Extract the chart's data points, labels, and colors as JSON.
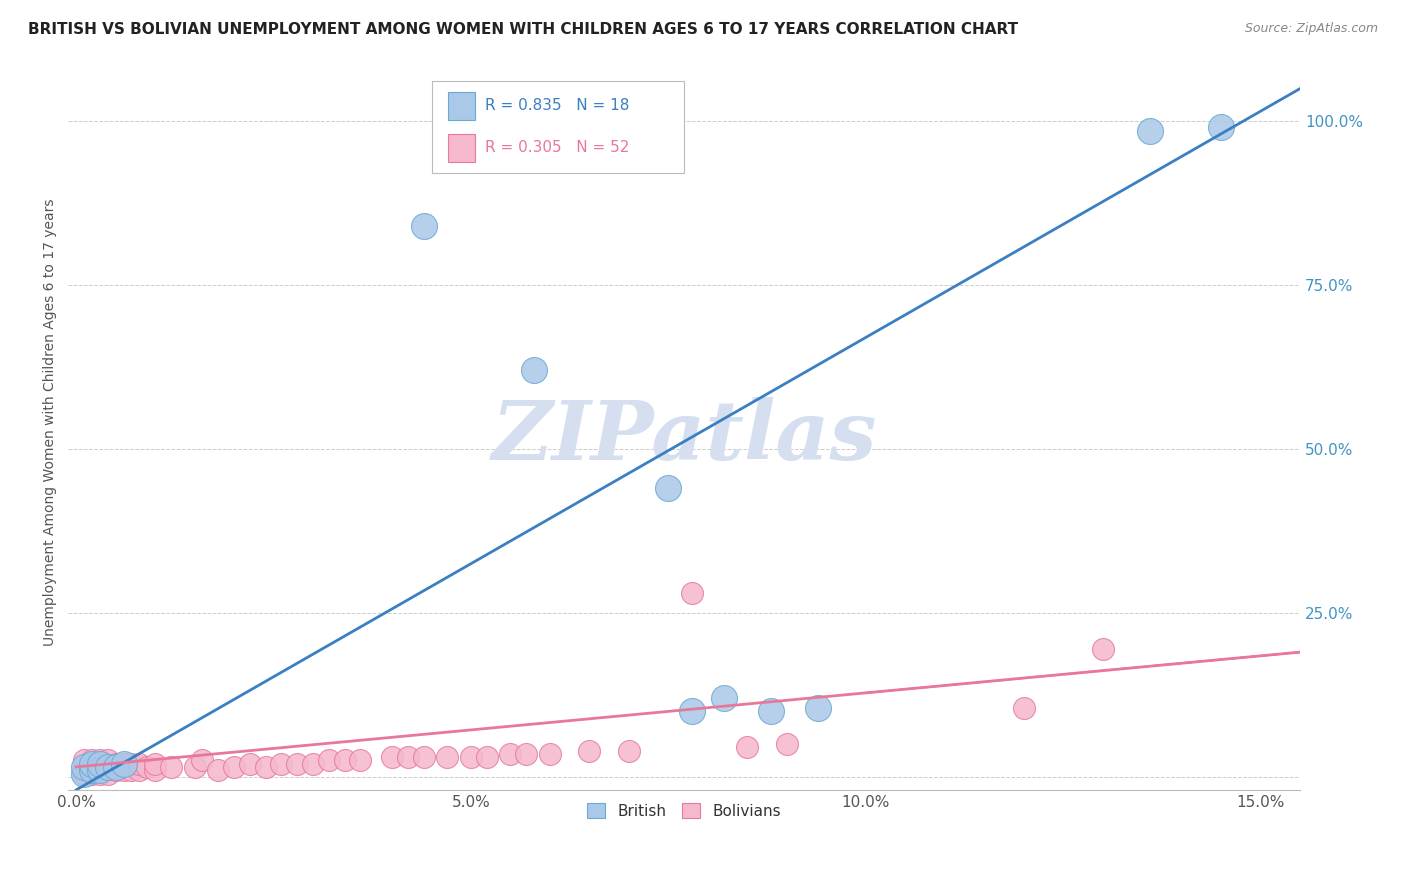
{
  "title": "BRITISH VS BOLIVIAN UNEMPLOYMENT AMONG WOMEN WITH CHILDREN AGES 6 TO 17 YEARS CORRELATION CHART",
  "source": "Source: ZipAtlas.com",
  "ylabel": "Unemployment Among Women with Children Ages 6 to 17 years",
  "xlim": [
    -0.001,
    0.155
  ],
  "ylim": [
    -0.02,
    1.1
  ],
  "xtick_vals": [
    0.0,
    0.05,
    0.1,
    0.15
  ],
  "xticklabels": [
    "0.0%",
    "5.0%",
    "10.0%",
    "15.0%"
  ],
  "ytick_vals": [
    0.0,
    0.25,
    0.5,
    0.75,
    1.0
  ],
  "yticklabels": [
    "",
    "25.0%",
    "50.0%",
    "75.0%",
    "100.0%"
  ],
  "british_fill": "#aac8e8",
  "british_edge": "#6aaad4",
  "bolivian_fill": "#f5b8cc",
  "bolivian_edge": "#e87aa0",
  "british_line_color": "#3a7fc1",
  "bolivian_line_color": "#e8789a",
  "watermark": "ZIPatlas",
  "watermark_color": "#d5dff0",
  "legend_R_british": "R = 0.835",
  "legend_N_british": "N = 18",
  "legend_R_bolivian": "R = 0.305",
  "legend_N_bolivian": "N = 52",
  "british_x": [
    0.001,
    0.001,
    0.002,
    0.002,
    0.003,
    0.003,
    0.004,
    0.005,
    0.006,
    0.044,
    0.058,
    0.075,
    0.078,
    0.082,
    0.088,
    0.094,
    0.136,
    0.145
  ],
  "british_y": [
    0.005,
    0.015,
    0.01,
    0.02,
    0.01,
    0.02,
    0.015,
    0.015,
    0.02,
    0.84,
    0.62,
    0.44,
    0.1,
    0.12,
    0.1,
    0.105,
    0.985,
    0.99
  ],
  "bolivian_x": [
    0.001,
    0.001,
    0.001,
    0.002,
    0.002,
    0.002,
    0.003,
    0.003,
    0.003,
    0.004,
    0.004,
    0.004,
    0.005,
    0.005,
    0.006,
    0.006,
    0.007,
    0.007,
    0.008,
    0.008,
    0.009,
    0.01,
    0.01,
    0.012,
    0.015,
    0.016,
    0.018,
    0.02,
    0.022,
    0.024,
    0.026,
    0.028,
    0.03,
    0.032,
    0.034,
    0.036,
    0.04,
    0.042,
    0.044,
    0.047,
    0.05,
    0.052,
    0.055,
    0.057,
    0.06,
    0.065,
    0.07,
    0.078,
    0.085,
    0.09,
    0.12,
    0.13
  ],
  "bolivian_y": [
    0.005,
    0.015,
    0.025,
    0.005,
    0.015,
    0.025,
    0.005,
    0.015,
    0.025,
    0.005,
    0.015,
    0.025,
    0.01,
    0.02,
    0.01,
    0.02,
    0.01,
    0.02,
    0.01,
    0.02,
    0.015,
    0.01,
    0.02,
    0.015,
    0.015,
    0.025,
    0.01,
    0.015,
    0.02,
    0.015,
    0.02,
    0.02,
    0.02,
    0.025,
    0.025,
    0.025,
    0.03,
    0.03,
    0.03,
    0.03,
    0.03,
    0.03,
    0.035,
    0.035,
    0.035,
    0.04,
    0.04,
    0.28,
    0.045,
    0.05,
    0.105,
    0.195
  ],
  "background_color": "#ffffff",
  "grid_color": "#cccccc"
}
